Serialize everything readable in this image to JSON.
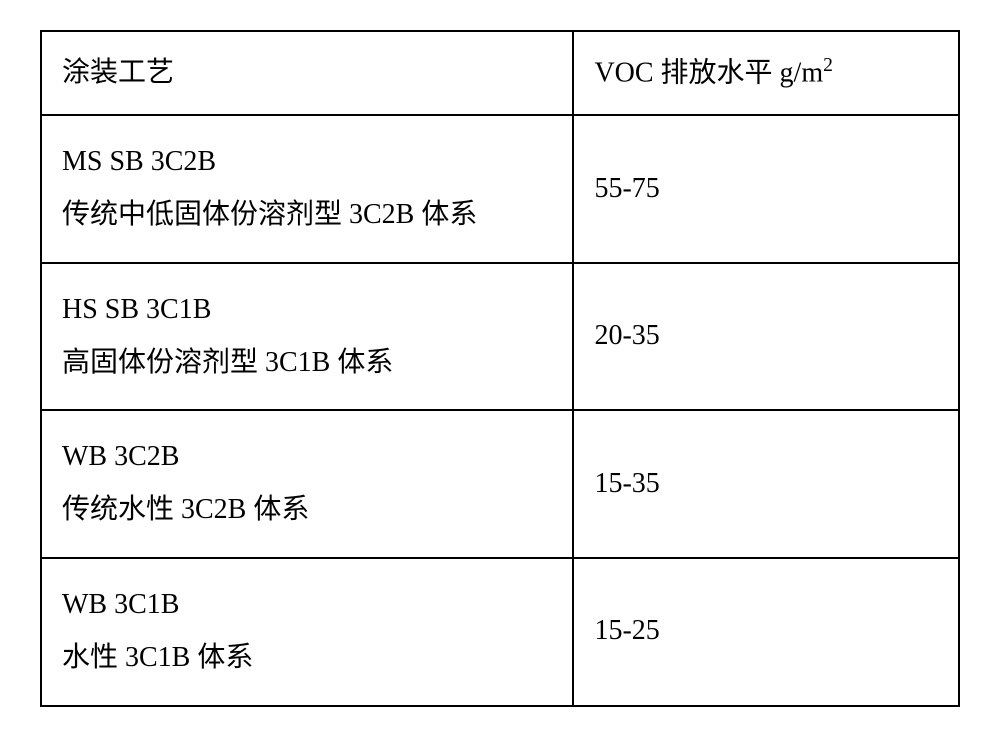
{
  "table": {
    "type": "table",
    "border_color": "#000000",
    "border_width": 2,
    "background_color": "#ffffff",
    "text_color": "#000000",
    "font_family": "SimSun",
    "cell_fontsize": 28,
    "columns": [
      {
        "key": "process",
        "width_pct": 58
      },
      {
        "key": "voc",
        "width_pct": 42
      }
    ],
    "header": {
      "process": "涂装工艺",
      "voc_prefix": "VOC 排放水平 g/m",
      "voc_exp": "2"
    },
    "rows": [
      {
        "process_line1": "MS SB 3C2B",
        "process_line2": "传统中低固体份溶剂型 3C2B 体系",
        "voc": "55-75"
      },
      {
        "process_line1": "HS SB 3C1B",
        "process_line2": "高固体份溶剂型 3C1B 体系",
        "voc": "20-35"
      },
      {
        "process_line1": "WB 3C2B",
        "process_line2": "传统水性 3C2B 体系",
        "voc": "15-35"
      },
      {
        "process_line1": "WB 3C1B",
        "process_line2": "水性 3C1B 体系",
        "voc": "15-25"
      }
    ]
  }
}
